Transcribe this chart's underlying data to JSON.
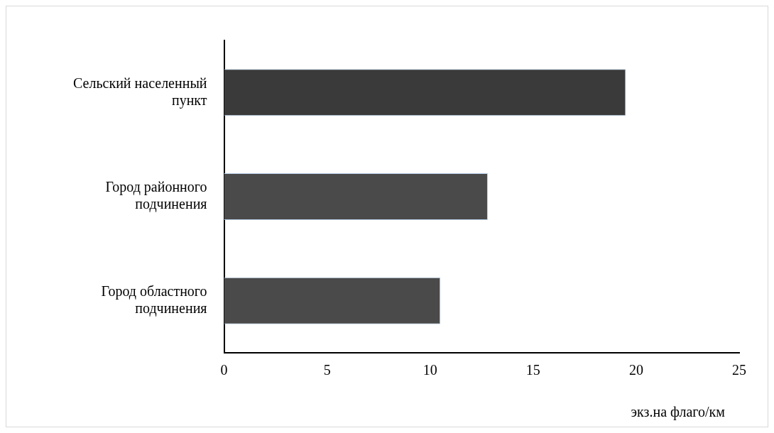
{
  "chart_data": {
    "type": "bar",
    "orientation": "horizontal",
    "categories": [
      "Сельский населенный пункт",
      "Город районного подчинения",
      "Город областного подчинения"
    ],
    "values": [
      19.5,
      12.8,
      10.5
    ],
    "colors": [
      "#3a3a3a",
      "#4a4a4a",
      "#4a4a4a"
    ],
    "xlabel": "экз.на флаго/км",
    "xlim": [
      0,
      25
    ],
    "xticks": [
      0,
      5,
      10,
      15,
      20,
      25
    ],
    "grid": false,
    "legend": false
  }
}
